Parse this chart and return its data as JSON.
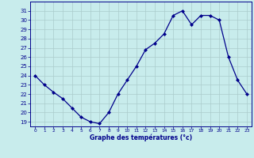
{
  "x": [
    0,
    1,
    2,
    3,
    4,
    5,
    6,
    7,
    8,
    9,
    10,
    11,
    12,
    13,
    14,
    15,
    16,
    17,
    18,
    19,
    20,
    21,
    22,
    23
  ],
  "y": [
    24,
    23,
    22.2,
    21.5,
    20.5,
    19.5,
    19.0,
    18.8,
    20.0,
    22.0,
    23.5,
    25.0,
    26.8,
    27.5,
    28.5,
    30.5,
    31.0,
    29.5,
    30.5,
    30.5,
    30.0,
    26.0,
    23.5,
    22.0
  ],
  "line_color": "#00008B",
  "marker_color": "#00008B",
  "bg_color": "#c8ecec",
  "grid_color": "#aacccc",
  "xlabel": "Graphe des températures (°c)",
  "label_color": "#00008B",
  "ylim": [
    18.5,
    32.0
  ],
  "xlim": [
    -0.5,
    23.5
  ],
  "yticks": [
    19,
    20,
    21,
    22,
    23,
    24,
    25,
    26,
    27,
    28,
    29,
    30,
    31
  ],
  "xtick_labels": [
    "0",
    "1",
    "2",
    "3",
    "4",
    "5",
    "6",
    "7",
    "8",
    "9",
    "10",
    "11",
    "12",
    "13",
    "14",
    "15",
    "16",
    "17",
    "18",
    "19",
    "20",
    "21",
    "22",
    "23"
  ],
  "fig_bg": "#c8ecec"
}
